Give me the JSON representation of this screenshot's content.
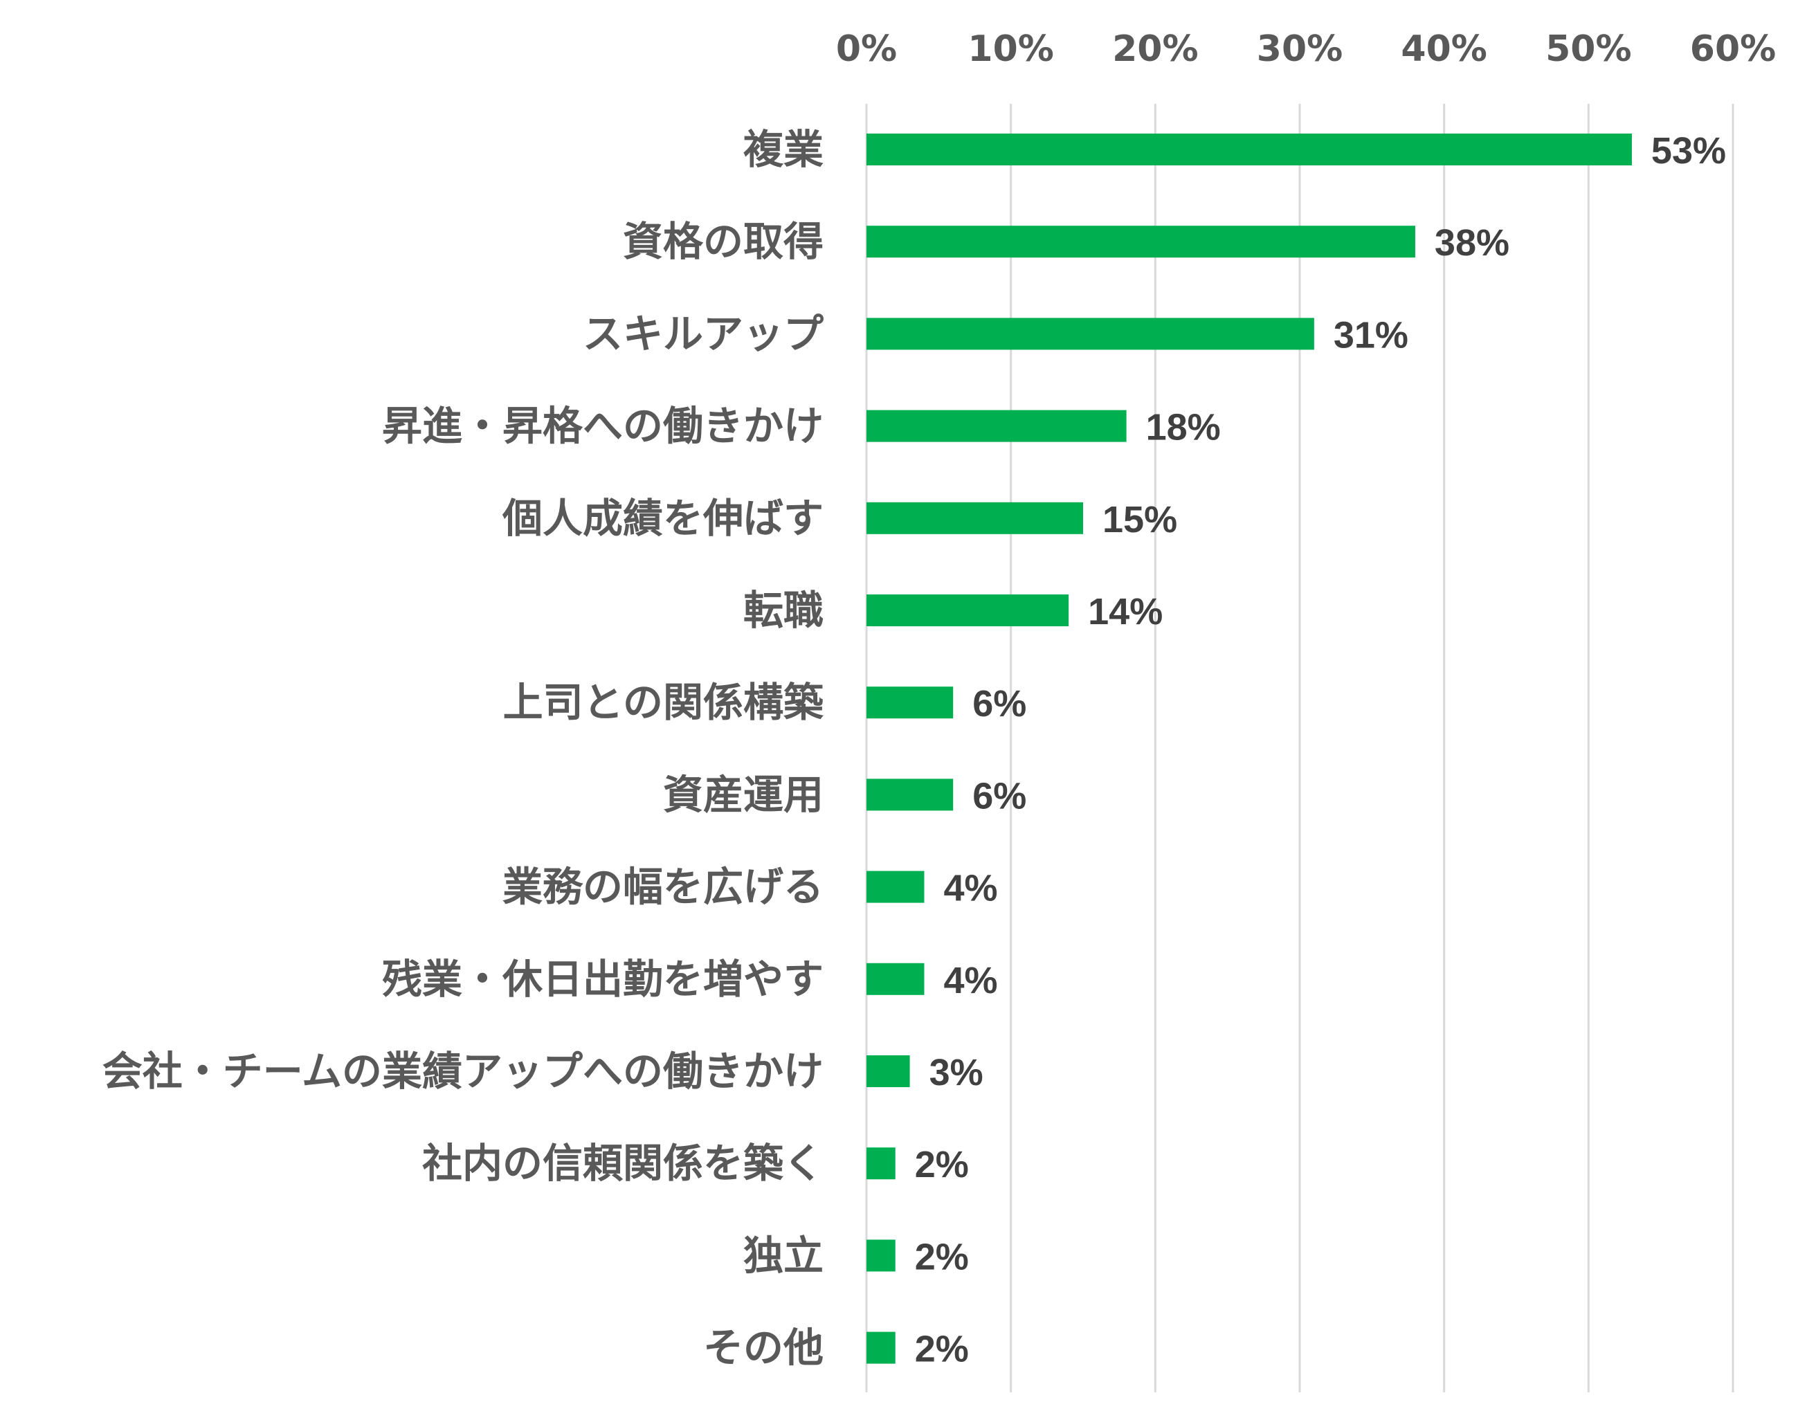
{
  "chart_data": {
    "type": "bar",
    "orientation": "horizontal",
    "categories": [
      "複業",
      "資格の取得",
      "スキルアップ",
      "昇進・昇格への働きかけ",
      "個人成績を伸ばす",
      "転職",
      "上司との関係構築",
      "資産運用",
      "業務の幅を広げる",
      "残業・休日出勤を増やす",
      "会社・チームの業績アップへの働きかけ",
      "社内の信頼関係を築く",
      "独立",
      "その他"
    ],
    "values": [
      53,
      38,
      31,
      18,
      15,
      14,
      6,
      6,
      4,
      4,
      3,
      2,
      2,
      2
    ],
    "data_labels": [
      "53%",
      "38%",
      "31%",
      "18%",
      "15%",
      "14%",
      "6%",
      "6%",
      "4%",
      "4%",
      "3%",
      "2%",
      "2%",
      "2%"
    ],
    "xlim": [
      0,
      60
    ],
    "x_ticks": [
      0,
      10,
      20,
      30,
      40,
      50,
      60
    ],
    "x_tick_labels": [
      "0%",
      "10%",
      "20%",
      "30%",
      "40%",
      "50%",
      "60%"
    ],
    "x_axis_position": "top",
    "grid": true,
    "bar_color": "#00b050",
    "grid_color": "#d9d9d9"
  }
}
